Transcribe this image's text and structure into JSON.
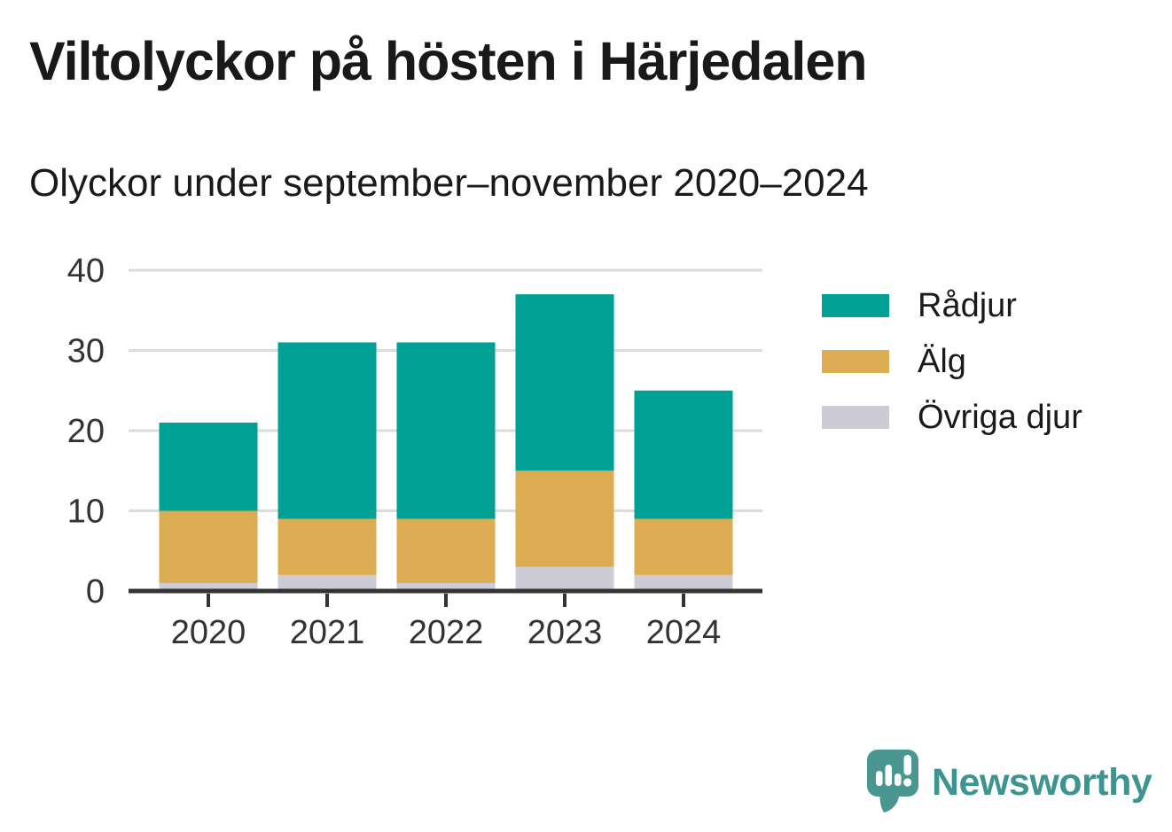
{
  "header": {
    "title": "Viltolyckor på hösten i Härjedalen",
    "subtitle": "Olyckor under september–november 2020–2024"
  },
  "chart_data": {
    "type": "bar",
    "stacked": true,
    "title": "Viltolyckor på hösten i Härjedalen",
    "subtitle": "Olyckor under september–november 2020–2024",
    "categories": [
      "2020",
      "2021",
      "2022",
      "2023",
      "2024"
    ],
    "series": [
      {
        "name": "Rådjur",
        "color": "#00A094",
        "values": [
          11,
          22,
          22,
          22,
          16
        ]
      },
      {
        "name": "Älg",
        "color": "#DCAC52",
        "values": [
          9,
          7,
          8,
          12,
          7
        ]
      },
      {
        "name": "Övriga djur",
        "color": "#CDCBD5",
        "values": [
          1,
          2,
          1,
          3,
          2
        ]
      }
    ],
    "stack_bottom_to_top": [
      "Övriga djur",
      "Älg",
      "Rådjur"
    ],
    "totals": [
      21,
      31,
      31,
      37,
      25
    ],
    "xlabel": "",
    "ylabel": "",
    "ylim": [
      0,
      40
    ],
    "yticks": [
      0,
      10,
      20,
      30,
      40
    ],
    "grid": true,
    "legend_position": "right"
  },
  "colors": {
    "axis": "#333333",
    "gridline": "#DBDBDB",
    "tick_label": "#333333",
    "brand_teal": "#3E948F",
    "brand_icon_fill": "#4A9791",
    "background": "#FFFFFF"
  },
  "footer": {
    "brand": "Newsworthy",
    "logo_icon": "speech-bubble-bar-chart-exclamation-icon"
  }
}
